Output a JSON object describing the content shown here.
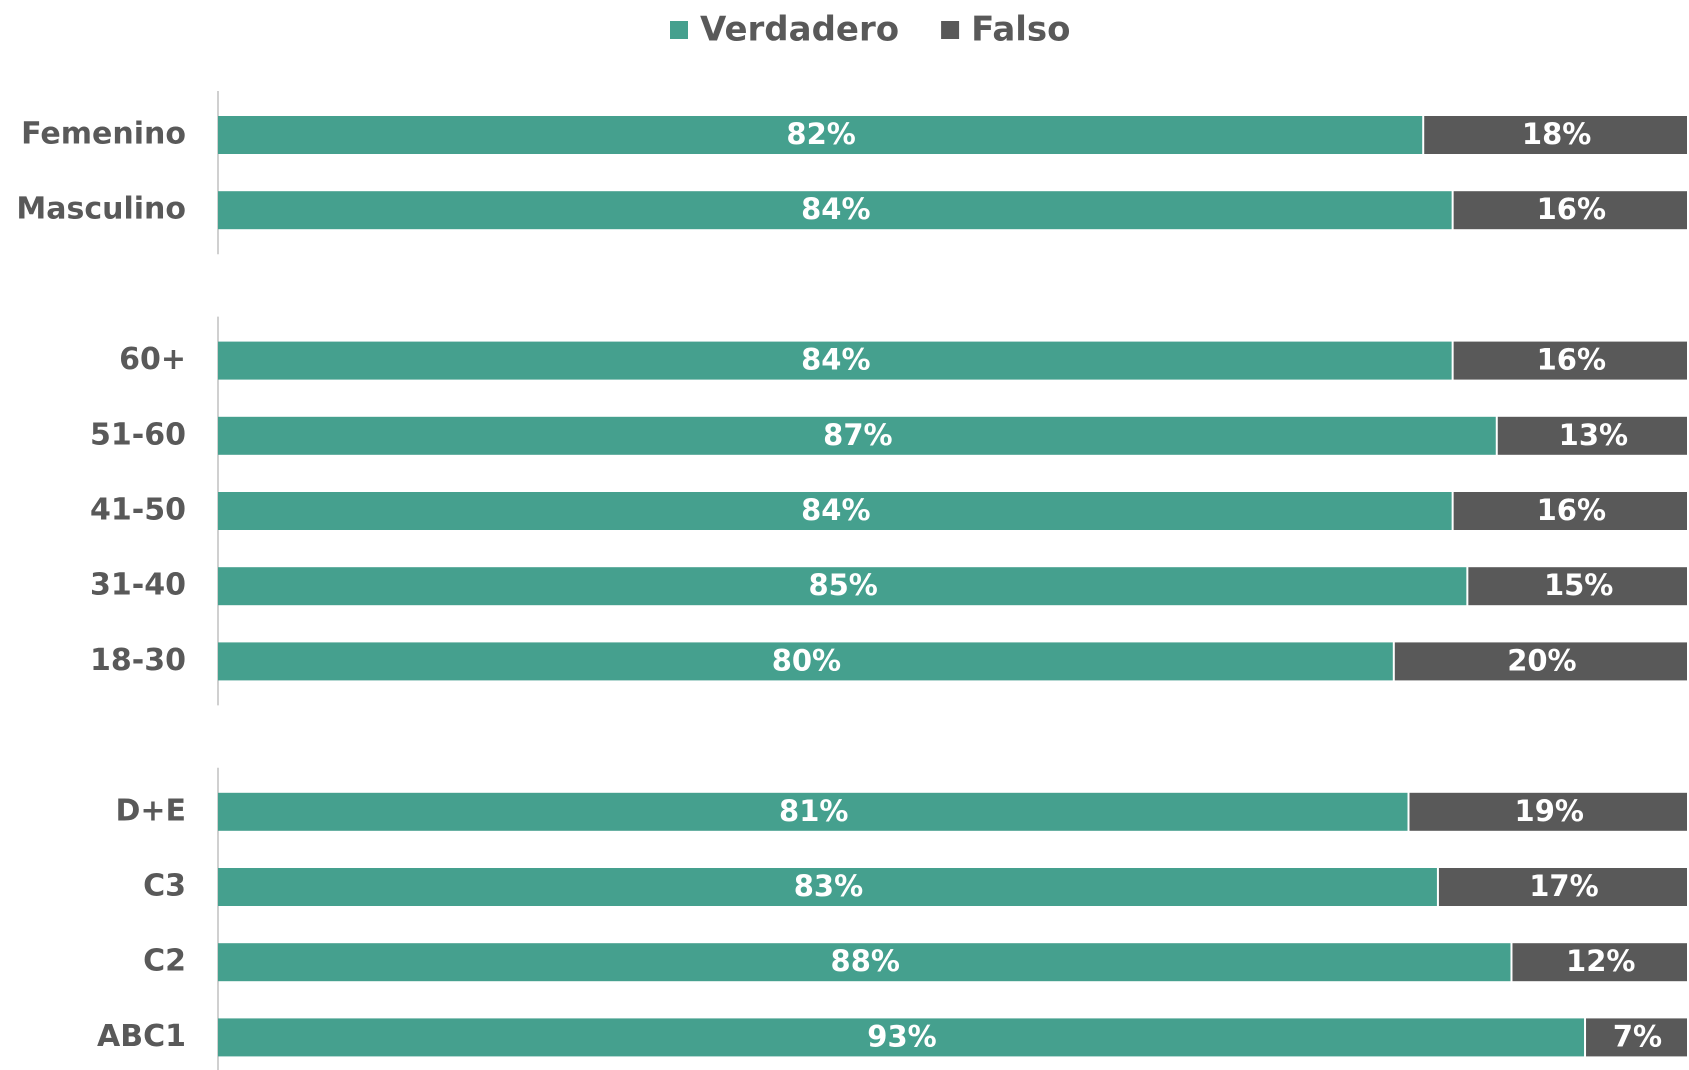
{
  "chart_data": {
    "type": "stacked-barh",
    "categories": [
      "Femenino",
      "Masculino",
      null,
      "60+",
      "51-60",
      "41-50",
      "31-40",
      "18-30",
      null,
      "D+E",
      "C3",
      "C2",
      "ABC1"
    ],
    "xlim": [
      0,
      100
    ],
    "legend": "top",
    "series": [
      {
        "name": "Verdadero",
        "color": "#45a08e",
        "values": [
          82,
          84,
          null,
          84,
          87,
          84,
          85,
          80,
          null,
          81,
          83,
          88,
          93
        ],
        "value_labels": [
          "82%",
          "84%",
          null,
          "84%",
          "87%",
          "84%",
          "85%",
          "80%",
          null,
          "81%",
          "83%",
          "88%",
          "93%"
        ]
      },
      {
        "name": "Falso",
        "color": "#595959",
        "values": [
          18,
          16,
          null,
          16,
          13,
          16,
          15,
          20,
          null,
          19,
          17,
          12,
          7
        ],
        "value_labels": [
          "18%",
          "16%",
          null,
          "16%",
          "13%",
          "16%",
          "15%",
          "20%",
          null,
          "19%",
          "17%",
          "12%",
          "7%"
        ]
      }
    ]
  }
}
